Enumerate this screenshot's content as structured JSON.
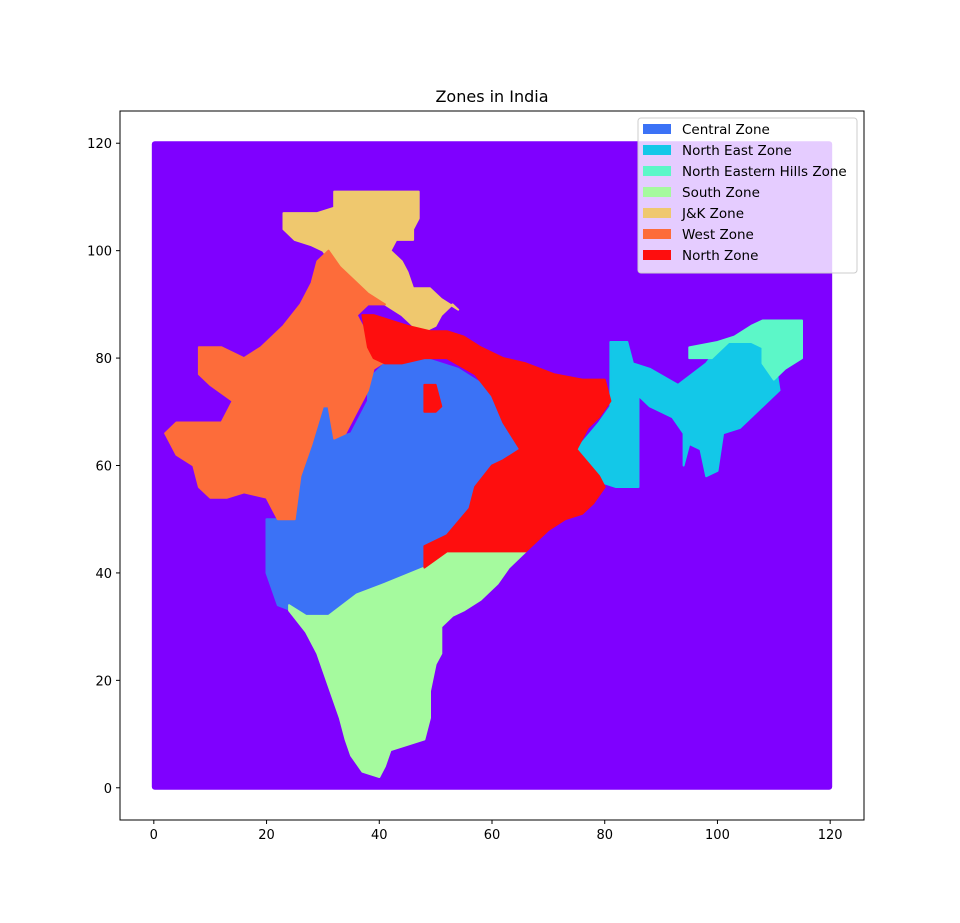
{
  "chart_data": {
    "type": "scatter",
    "title": "Zones in India",
    "xlabel": "",
    "ylabel": "",
    "xlim": [
      -6,
      126
    ],
    "ylim": [
      -6,
      126
    ],
    "xticks": [
      0,
      20,
      40,
      60,
      80,
      100,
      120
    ],
    "yticks": [
      0,
      20,
      40,
      60,
      80,
      100,
      120
    ],
    "grid": false,
    "legend_position": "top-right",
    "background_color": "#7f00ff",
    "series": [
      {
        "name": "Central Zone",
        "color": "#3b72f6",
        "regions": [
          [
            [
              20,
              50
            ],
            [
              20,
              40
            ],
            [
              22,
              34
            ],
            [
              27,
              32
            ],
            [
              31,
              32
            ],
            [
              36,
              36
            ],
            [
              41,
              38
            ],
            [
              48,
              41
            ],
            [
              52,
              44
            ],
            [
              56,
              44
            ],
            [
              56,
              52
            ],
            [
              57,
              56
            ],
            [
              62,
              60
            ],
            [
              65,
              63
            ],
            [
              62,
              70
            ],
            [
              60,
              74
            ],
            [
              54,
              78
            ],
            [
              48,
              80
            ],
            [
              41,
              79
            ],
            [
              38,
              76
            ],
            [
              38,
              72
            ],
            [
              35,
              66
            ],
            [
              32,
              65
            ],
            [
              31,
              71
            ],
            [
              30,
              71
            ],
            [
              28,
              64
            ],
            [
              26,
              58
            ],
            [
              25,
              50
            ]
          ]
        ]
      },
      {
        "name": "North East Zone",
        "color": "#13c8e8",
        "regions": [
          [
            [
              75,
              63
            ],
            [
              79,
              68
            ],
            [
              81,
              71
            ],
            [
              81,
              83
            ],
            [
              84,
              83
            ],
            [
              85,
              79
            ],
            [
              88,
              78
            ],
            [
              93,
              75
            ],
            [
              98,
              79
            ],
            [
              101,
              83
            ],
            [
              107,
              83
            ],
            [
              110,
              81
            ],
            [
              111,
              74
            ],
            [
              104,
              67
            ],
            [
              101,
              66
            ],
            [
              100,
              59
            ],
            [
              98,
              58
            ],
            [
              97,
              63
            ],
            [
              95,
              64
            ],
            [
              94,
              60
            ],
            [
              94,
              66
            ],
            [
              92,
              69
            ],
            [
              88,
              71
            ],
            [
              86,
              73
            ],
            [
              86,
              56
            ],
            [
              82,
              56
            ],
            [
              79,
              57
            ]
          ]
        ]
      },
      {
        "name": "North Eastern Hills Zone",
        "color": "#5cf7c8",
        "regions": [
          [
            [
              95,
              80
            ],
            [
              95,
              82
            ],
            [
              100,
              83
            ],
            [
              103,
              84
            ],
            [
              106,
              86
            ],
            [
              108,
              87
            ],
            [
              115,
              87
            ],
            [
              115,
              80
            ],
            [
              112,
              78
            ],
            [
              110,
              76
            ],
            [
              108,
              79
            ],
            [
              108,
              82
            ],
            [
              106,
              83
            ],
            [
              102,
              83
            ],
            [
              99,
              80
            ]
          ]
        ]
      },
      {
        "name": "South Zone",
        "color": "#a5fa9e",
        "regions": [
          [
            [
              24,
              33
            ],
            [
              27,
              29
            ],
            [
              29,
              25
            ],
            [
              31,
              19
            ],
            [
              33,
              13
            ],
            [
              34,
              9
            ],
            [
              35,
              6
            ],
            [
              37,
              3
            ],
            [
              40,
              2
            ],
            [
              41,
              4
            ],
            [
              42,
              7
            ],
            [
              45,
              8
            ],
            [
              48,
              9
            ],
            [
              49,
              13
            ],
            [
              49,
              18
            ],
            [
              50,
              23
            ],
            [
              51,
              25
            ],
            [
              51,
              30
            ],
            [
              53,
              32
            ],
            [
              55,
              33
            ],
            [
              58,
              35
            ],
            [
              61,
              38
            ],
            [
              63,
              41
            ],
            [
              66,
              44
            ],
            [
              61,
              44
            ],
            [
              56,
              44
            ],
            [
              52,
              44
            ],
            [
              48,
              41
            ],
            [
              41,
              38
            ],
            [
              36,
              36
            ],
            [
              31,
              32
            ],
            [
              27,
              32
            ],
            [
              24,
              34
            ]
          ]
        ]
      },
      {
        "name": "J&K Zone",
        "color": "#efc86e",
        "regions": [
          [
            [
              23,
              107
            ],
            [
              23,
              104
            ],
            [
              25,
              102
            ],
            [
              28,
              101
            ],
            [
              30,
              100
            ],
            [
              32,
              97
            ],
            [
              34,
              95
            ],
            [
              36,
              93
            ],
            [
              38,
              91
            ],
            [
              41,
              90
            ],
            [
              44,
              88
            ],
            [
              46,
              86
            ],
            [
              48,
              85
            ],
            [
              50,
              86
            ],
            [
              51,
              88
            ],
            [
              53,
              90
            ],
            [
              54,
              89
            ],
            [
              51,
              91
            ],
            [
              49,
              93
            ],
            [
              46,
              93
            ],
            [
              45,
              96
            ],
            [
              44,
              98
            ],
            [
              42,
              100
            ],
            [
              43,
              102
            ],
            [
              46,
              102
            ],
            [
              46,
              104
            ],
            [
              47,
              106
            ],
            [
              47,
              111
            ],
            [
              32,
              111
            ],
            [
              32,
              108
            ],
            [
              29,
              107
            ]
          ]
        ]
      },
      {
        "name": "West Zone",
        "color": "#fd6c3a",
        "regions": [
          [
            [
              2,
              66
            ],
            [
              4,
              68
            ],
            [
              8,
              68
            ],
            [
              12,
              68
            ],
            [
              14,
              72
            ],
            [
              10,
              75
            ],
            [
              8,
              77
            ],
            [
              8,
              79
            ],
            [
              8,
              82
            ],
            [
              12,
              82
            ],
            [
              16,
              80
            ],
            [
              19,
              82
            ],
            [
              21,
              84
            ],
            [
              23,
              86
            ],
            [
              26,
              90
            ],
            [
              28,
              94
            ],
            [
              29,
              98
            ],
            [
              31,
              100
            ],
            [
              33,
              97
            ],
            [
              36,
              94
            ],
            [
              38,
              92
            ],
            [
              41,
              90
            ],
            [
              38,
              90
            ],
            [
              36,
              88
            ],
            [
              38,
              84
            ],
            [
              40,
              81
            ],
            [
              42,
              80
            ],
            [
              39,
              78
            ],
            [
              38,
              74
            ],
            [
              36,
              70
            ],
            [
              34,
              66
            ],
            [
              32,
              65
            ],
            [
              31,
              71
            ],
            [
              30,
              71
            ],
            [
              28,
              64
            ],
            [
              26,
              58
            ],
            [
              25,
              50
            ],
            [
              22,
              50
            ],
            [
              20,
              54
            ],
            [
              16,
              55
            ],
            [
              13,
              54
            ],
            [
              10,
              54
            ],
            [
              8,
              56
            ],
            [
              7,
              60
            ],
            [
              4,
              62
            ]
          ]
        ]
      },
      {
        "name": "North Zone",
        "color": "#fe0e0e",
        "regions": [
          [
            [
              37,
              88
            ],
            [
              39,
              88
            ],
            [
              42,
              87
            ],
            [
              45,
              86
            ],
            [
              49,
              85
            ],
            [
              52,
              85
            ],
            [
              55,
              84
            ],
            [
              58,
              82
            ],
            [
              62,
              80
            ],
            [
              66,
              79
            ],
            [
              71,
              77
            ],
            [
              76,
              76
            ],
            [
              80,
              76
            ],
            [
              81,
              72
            ],
            [
              79,
              69
            ],
            [
              77,
              67
            ],
            [
              75,
              63
            ],
            [
              79,
              58
            ],
            [
              80,
              56
            ],
            [
              78,
              53
            ],
            [
              76,
              51
            ],
            [
              73,
              50
            ],
            [
              70,
              48
            ],
            [
              66,
              44
            ],
            [
              59,
              44
            ],
            [
              52,
              44
            ],
            [
              48,
              41
            ],
            [
              48,
              45
            ],
            [
              52,
              47
            ],
            [
              56,
              52
            ],
            [
              57,
              56
            ],
            [
              60,
              60
            ],
            [
              62,
              61
            ],
            [
              65,
              63
            ],
            [
              62,
              68
            ],
            [
              60,
              73
            ],
            [
              57,
              77
            ],
            [
              52,
              80
            ],
            [
              48,
              80
            ],
            [
              44,
              79
            ],
            [
              41,
              79
            ],
            [
              39,
              80
            ],
            [
              38,
              82
            ]
          ],
          [
            [
              48,
              70
            ],
            [
              48,
              75
            ],
            [
              50,
              75
            ],
            [
              51,
              71
            ],
            [
              50,
              70
            ]
          ]
        ]
      }
    ]
  }
}
